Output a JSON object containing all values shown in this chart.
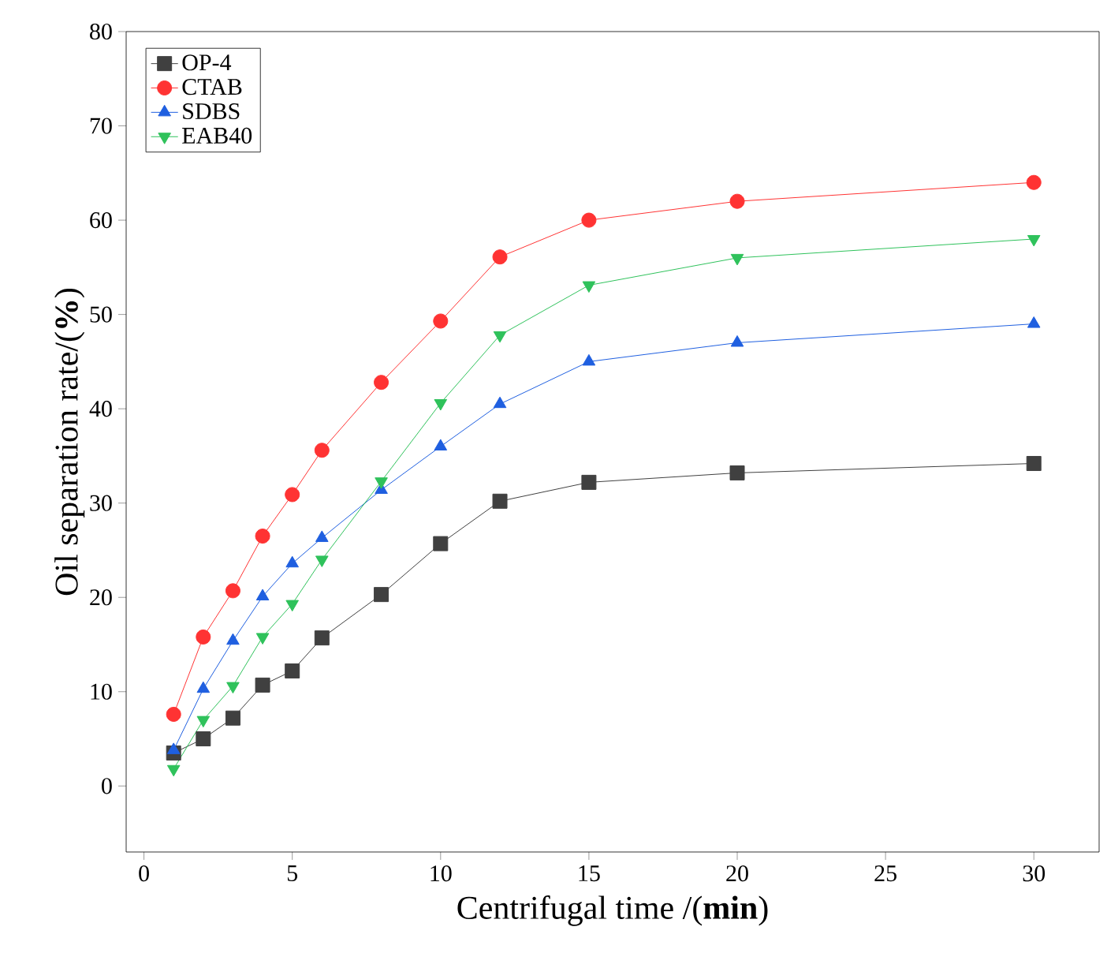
{
  "chart_data": {
    "type": "line",
    "xlabel": "Centrifugal time /(**min**)",
    "ylabel": "Oil separation rate/(**%**)",
    "xlim": [
      -0.6,
      32.2
    ],
    "ylim": [
      -7,
      80
    ],
    "xticks": [
      0,
      5,
      10,
      15,
      20,
      25,
      30
    ],
    "yticks": [
      0,
      10,
      20,
      30,
      40,
      50,
      60,
      70,
      80
    ],
    "grid": false,
    "legend": "top left",
    "line_style": "solid",
    "series": [
      {
        "name": "OP-4",
        "color": "#404040",
        "marker": "square",
        "x": [
          1,
          2,
          3,
          4,
          5,
          6,
          8,
          10,
          12,
          15,
          20,
          30
        ],
        "values": [
          3.5,
          5,
          7.2,
          10.7,
          12.2,
          15.7,
          20.3,
          25.7,
          30.2,
          32.2,
          33.2,
          34.2
        ]
      },
      {
        "name": "CTAB",
        "color": "#ff3333",
        "marker": "circle",
        "x": [
          1,
          2,
          3,
          4,
          5,
          6,
          8,
          10,
          12,
          15,
          20,
          30
        ],
        "values": [
          7.6,
          15.8,
          20.7,
          26.5,
          30.9,
          35.6,
          42.8,
          49.3,
          56.1,
          60,
          62,
          64
        ]
      },
      {
        "name": "SDBS",
        "color": "#1f5fe0",
        "marker": "triangle",
        "x": [
          1,
          2,
          3,
          4,
          5,
          6,
          8,
          10,
          12,
          15,
          20,
          30
        ],
        "values": [
          3.8,
          10.3,
          15.4,
          20.1,
          23.6,
          26.3,
          31.4,
          36,
          40.5,
          45,
          47,
          49
        ]
      },
      {
        "name": "EAB40",
        "color": "#2fc25b",
        "marker": "triangle-down",
        "x": [
          1,
          2,
          3,
          4,
          5,
          6,
          8,
          10,
          12,
          15,
          20,
          30
        ],
        "values": [
          1.8,
          7,
          10.6,
          15.8,
          19.3,
          24,
          32.3,
          40.6,
          47.8,
          53.1,
          56,
          58
        ]
      }
    ]
  }
}
